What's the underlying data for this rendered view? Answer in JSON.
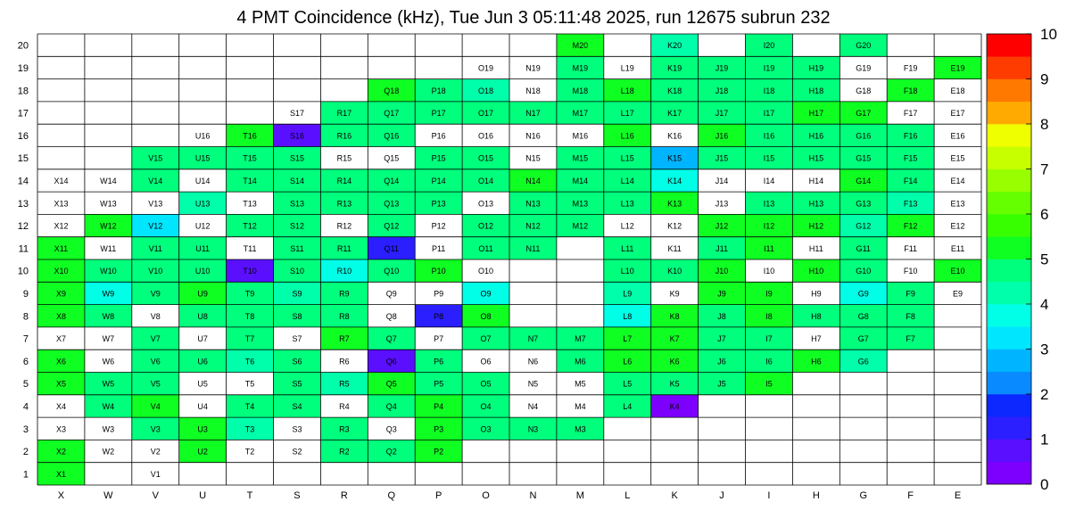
{
  "chart_data": {
    "type": "heatmap",
    "title": "4 PMT Coincidence (kHz), Tue Jun  3 05:11:48 2025, run 12675 subrun 232",
    "xlabel": "",
    "ylabel": "",
    "columns": [
      "X",
      "W",
      "V",
      "U",
      "T",
      "S",
      "R",
      "Q",
      "P",
      "O",
      "N",
      "M",
      "L",
      "K",
      "J",
      "I",
      "H",
      "G",
      "F",
      "E"
    ],
    "rows": [
      "1",
      "2",
      "3",
      "4",
      "5",
      "6",
      "7",
      "8",
      "9",
      "10",
      "11",
      "12",
      "13",
      "14",
      "15",
      "16",
      "17",
      "18",
      "19",
      "20"
    ],
    "zlim": [
      0,
      10
    ],
    "colorbar_ticks": [
      "0",
      "1",
      "2",
      "3",
      "4",
      "5",
      "6",
      "7",
      "8",
      "9",
      "10"
    ],
    "grid": true,
    "cells": [
      [
        "X1",
        5.3
      ],
      [
        "V1",
        0
      ],
      [
        "X2",
        5.2
      ],
      [
        "W2",
        0
      ],
      [
        "V2",
        0
      ],
      [
        "U2",
        5.0
      ],
      [
        "T2",
        0
      ],
      [
        "S2",
        0
      ],
      [
        "R2",
        4.8
      ],
      [
        "Q2",
        4.9
      ],
      [
        "P2",
        5.2
      ],
      [
        "X3",
        0
      ],
      [
        "W3",
        0
      ],
      [
        "V3",
        4.6
      ],
      [
        "U3",
        5.3
      ],
      [
        "T3",
        4.4
      ],
      [
        "S3",
        0
      ],
      [
        "R3",
        4.9
      ],
      [
        "Q3",
        0
      ],
      [
        "P3",
        5.0
      ],
      [
        "O3",
        4.7
      ],
      [
        "N3",
        4.6
      ],
      [
        "M3",
        4.9
      ],
      [
        "X4",
        0
      ],
      [
        "W4",
        4.9
      ],
      [
        "V4",
        5.0
      ],
      [
        "U4",
        0
      ],
      [
        "T4",
        4.9
      ],
      [
        "S4",
        4.9
      ],
      [
        "R4",
        0
      ],
      [
        "Q4",
        4.9
      ],
      [
        "P4",
        5.0
      ],
      [
        "O4",
        4.7
      ],
      [
        "N4",
        0
      ],
      [
        "M4",
        0
      ],
      [
        "L4",
        4.9
      ],
      [
        "K4",
        0.4
      ],
      [
        "X5",
        5.1
      ],
      [
        "W5",
        4.9
      ],
      [
        "V5",
        4.6
      ],
      [
        "U5",
        0
      ],
      [
        "T5",
        0
      ],
      [
        "S5",
        4.8
      ],
      [
        "R5",
        4.1
      ],
      [
        "Q5",
        5.3
      ],
      [
        "P5",
        4.7
      ],
      [
        "O5",
        4.7
      ],
      [
        "N5",
        0
      ],
      [
        "M5",
        0
      ],
      [
        "L5",
        4.8
      ],
      [
        "K5",
        4.8
      ],
      [
        "J5",
        4.9
      ],
      [
        "I5",
        5.3
      ],
      [
        "X6",
        5.1
      ],
      [
        "W6",
        0
      ],
      [
        "V6",
        4.6
      ],
      [
        "U6",
        4.6
      ],
      [
        "T6",
        4.4
      ],
      [
        "S6",
        4.6
      ],
      [
        "R6",
        0
      ],
      [
        "Q6",
        0.6
      ],
      [
        "P6",
        4.8
      ],
      [
        "O6",
        0
      ],
      [
        "N6",
        0
      ],
      [
        "M6",
        4.8
      ],
      [
        "L6",
        5.0
      ],
      [
        "K6",
        5.0
      ],
      [
        "J6",
        4.9
      ],
      [
        "I6",
        4.8
      ],
      [
        "H6",
        5.3
      ],
      [
        "G6",
        4.1
      ],
      [
        "X7",
        0
      ],
      [
        "W7",
        0
      ],
      [
        "V7",
        4.6
      ],
      [
        "U7",
        0
      ],
      [
        "T7",
        4.8
      ],
      [
        "S7",
        0
      ],
      [
        "R7",
        5.2
      ],
      [
        "Q7",
        4.8
      ],
      [
        "P7",
        0
      ],
      [
        "O7",
        4.8
      ],
      [
        "N7",
        4.8
      ],
      [
        "M7",
        4.9
      ],
      [
        "L7",
        5.0
      ],
      [
        "K7",
        5.2
      ],
      [
        "J7",
        4.9
      ],
      [
        "I7",
        4.9
      ],
      [
        "H7",
        0
      ],
      [
        "G7",
        4.9
      ],
      [
        "F7",
        4.8
      ],
      [
        "X8",
        5.1
      ],
      [
        "W8",
        4.9
      ],
      [
        "V8",
        0
      ],
      [
        "U8",
        4.7
      ],
      [
        "T8",
        4.8
      ],
      [
        "S8",
        4.6
      ],
      [
        "R8",
        4.8
      ],
      [
        "Q8",
        0
      ],
      [
        "P8",
        1.2
      ],
      [
        "O8",
        5.4
      ],
      [
        "L8",
        3.6
      ],
      [
        "K8",
        5.1
      ],
      [
        "J8",
        4.9
      ],
      [
        "I8",
        5.0
      ],
      [
        "H8",
        4.8
      ],
      [
        "G8",
        4.8
      ],
      [
        "F8",
        4.9
      ],
      [
        "X9",
        5.1
      ],
      [
        "W9",
        3.7
      ],
      [
        "V9",
        4.6
      ],
      [
        "U9",
        5.1
      ],
      [
        "T9",
        4.7
      ],
      [
        "S9",
        4.4
      ],
      [
        "R9",
        4.9
      ],
      [
        "Q9",
        0
      ],
      [
        "P9",
        0
      ],
      [
        "O9",
        3.7
      ],
      [
        "L9",
        4.4
      ],
      [
        "K9",
        0
      ],
      [
        "J9",
        5.0
      ],
      [
        "I9",
        5.2
      ],
      [
        "H9",
        0
      ],
      [
        "G9",
        3.6
      ],
      [
        "F9",
        4.9
      ],
      [
        "E9",
        0
      ],
      [
        "X10",
        5.2
      ],
      [
        "W10",
        4.9
      ],
      [
        "V10",
        4.6
      ],
      [
        "U10",
        4.7
      ],
      [
        "T10",
        0.6
      ],
      [
        "S10",
        4.7
      ],
      [
        "R10",
        3.8
      ],
      [
        "Q10",
        4.8
      ],
      [
        "P10",
        5.3
      ],
      [
        "O10",
        0
      ],
      [
        "L10",
        4.9
      ],
      [
        "K10",
        4.6
      ],
      [
        "J10",
        5.2
      ],
      [
        "I10",
        0
      ],
      [
        "H10",
        5.3
      ],
      [
        "G10",
        4.8
      ],
      [
        "F10",
        0
      ],
      [
        "E10",
        5.0
      ],
      [
        "X11",
        5.1
      ],
      [
        "W11",
        0
      ],
      [
        "V11",
        4.9
      ],
      [
        "U11",
        4.8
      ],
      [
        "T11",
        0
      ],
      [
        "S11",
        4.7
      ],
      [
        "R11",
        4.7
      ],
      [
        "Q11",
        1.0
      ],
      [
        "P11",
        0
      ],
      [
        "O11",
        4.8
      ],
      [
        "N11",
        4.7
      ],
      [
        "L11",
        4.8
      ],
      [
        "K11",
        0
      ],
      [
        "J11",
        4.8
      ],
      [
        "I11",
        5.2
      ],
      [
        "H11",
        0
      ],
      [
        "G11",
        4.8
      ],
      [
        "F11",
        0
      ],
      [
        "E11",
        0
      ],
      [
        "X12",
        0
      ],
      [
        "W12",
        5.0
      ],
      [
        "V12",
        3.4
      ],
      [
        "U12",
        0
      ],
      [
        "T12",
        4.6
      ],
      [
        "S12",
        4.6
      ],
      [
        "R12",
        0
      ],
      [
        "Q12",
        4.6
      ],
      [
        "P12",
        0
      ],
      [
        "O12",
        4.7
      ],
      [
        "N12",
        4.8
      ],
      [
        "M12",
        4.8
      ],
      [
        "L12",
        0
      ],
      [
        "K12",
        0
      ],
      [
        "J12",
        5.1
      ],
      [
        "I12",
        5.0
      ],
      [
        "H12",
        5.0
      ],
      [
        "G12",
        4.3
      ],
      [
        "F12",
        5.2
      ],
      [
        "E12",
        0
      ],
      [
        "X13",
        0
      ],
      [
        "W13",
        0
      ],
      [
        "V13",
        0
      ],
      [
        "U13",
        4.4
      ],
      [
        "T13",
        0
      ],
      [
        "S13",
        4.9
      ],
      [
        "R13",
        4.8
      ],
      [
        "Q13",
        4.8
      ],
      [
        "P13",
        4.7
      ],
      [
        "O13",
        0
      ],
      [
        "N13",
        4.8
      ],
      [
        "M13",
        4.8
      ],
      [
        "L13",
        4.7
      ],
      [
        "K13",
        5.0
      ],
      [
        "J13",
        0
      ],
      [
        "I13",
        4.8
      ],
      [
        "H13",
        4.8
      ],
      [
        "G13",
        4.8
      ],
      [
        "F13",
        4.1
      ],
      [
        "E13",
        0
      ],
      [
        "X14",
        0
      ],
      [
        "W14",
        0
      ],
      [
        "V14",
        4.6
      ],
      [
        "U14",
        0
      ],
      [
        "T14",
        4.8
      ],
      [
        "S14",
        4.8
      ],
      [
        "R14",
        4.8
      ],
      [
        "Q14",
        4.7
      ],
      [
        "P14",
        4.7
      ],
      [
        "O14",
        4.7
      ],
      [
        "N14",
        5.1
      ],
      [
        "M14",
        4.8
      ],
      [
        "L14",
        4.7
      ],
      [
        "K14",
        3.5
      ],
      [
        "J14",
        0
      ],
      [
        "I14",
        0
      ],
      [
        "H14",
        0
      ],
      [
        "G14",
        5.2
      ],
      [
        "F14",
        4.7
      ],
      [
        "E14",
        0
      ],
      [
        "V15",
        4.6
      ],
      [
        "U15",
        4.7
      ],
      [
        "T15",
        4.7
      ],
      [
        "S15",
        4.6
      ],
      [
        "R15",
        0
      ],
      [
        "Q15",
        0
      ],
      [
        "P15",
        4.6
      ],
      [
        "O15",
        4.6
      ],
      [
        "N15",
        0
      ],
      [
        "M15",
        4.8
      ],
      [
        "L15",
        4.6
      ],
      [
        "K15",
        2.8
      ],
      [
        "J15",
        4.7
      ],
      [
        "I15",
        4.7
      ],
      [
        "H15",
        4.7
      ],
      [
        "G15",
        4.7
      ],
      [
        "F15",
        4.7
      ],
      [
        "E15",
        0
      ],
      [
        "U16",
        0
      ],
      [
        "T16",
        5.2
      ],
      [
        "S16",
        0.6
      ],
      [
        "R16",
        4.7
      ],
      [
        "Q16",
        4.7
      ],
      [
        "P16",
        0
      ],
      [
        "O16",
        0
      ],
      [
        "N16",
        0
      ],
      [
        "M16",
        0
      ],
      [
        "L16",
        5.0
      ],
      [
        "K16",
        0
      ],
      [
        "J16",
        5.0
      ],
      [
        "I16",
        4.7
      ],
      [
        "H16",
        4.8
      ],
      [
        "G16",
        4.7
      ],
      [
        "F16",
        4.8
      ],
      [
        "E16",
        0
      ],
      [
        "S17",
        0
      ],
      [
        "R17",
        4.8
      ],
      [
        "Q17",
        4.7
      ],
      [
        "P17",
        4.7
      ],
      [
        "O17",
        4.7
      ],
      [
        "N17",
        4.8
      ],
      [
        "M17",
        4.8
      ],
      [
        "L17",
        4.7
      ],
      [
        "K17",
        4.6
      ],
      [
        "J17",
        4.5
      ],
      [
        "I17",
        4.7
      ],
      [
        "H17",
        5.1
      ],
      [
        "G17",
        5.2
      ],
      [
        "F17",
        0
      ],
      [
        "E17",
        0
      ],
      [
        "Q18",
        5.0
      ],
      [
        "P18",
        4.9
      ],
      [
        "O18",
        4.4
      ],
      [
        "N18",
        0
      ],
      [
        "M18",
        4.8
      ],
      [
        "L18",
        5.1
      ],
      [
        "K18",
        4.7
      ],
      [
        "J18",
        4.7
      ],
      [
        "I18",
        4.8
      ],
      [
        "H18",
        4.8
      ],
      [
        "G18",
        0
      ],
      [
        "F18",
        5.2
      ],
      [
        "E18",
        0
      ],
      [
        "O19",
        0
      ],
      [
        "N19",
        0
      ],
      [
        "M19",
        4.9
      ],
      [
        "L19",
        0
      ],
      [
        "K19",
        4.8
      ],
      [
        "J19",
        4.9
      ],
      [
        "I19",
        4.7
      ],
      [
        "H19",
        4.7
      ],
      [
        "G19",
        0
      ],
      [
        "F19",
        0
      ],
      [
        "E19",
        5.3
      ],
      [
        "M20",
        5.1
      ],
      [
        "K20",
        4.1
      ],
      [
        "I20",
        4.8
      ],
      [
        "G20",
        4.8
      ]
    ]
  }
}
